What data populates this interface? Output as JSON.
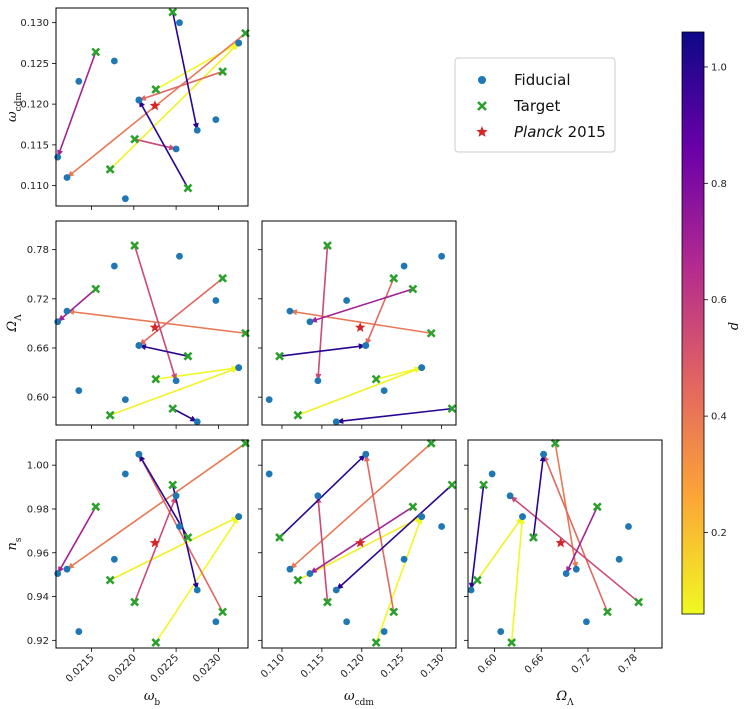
{
  "colorbar": {
    "label": "d",
    "ticks": [
      "0.2",
      "0.4",
      "0.6",
      "0.8",
      "1.0"
    ],
    "tick_values": [
      0.2,
      0.4,
      0.6,
      0.8,
      1.0
    ],
    "range": [
      0.06,
      1.06
    ],
    "colormap": "plasma_r",
    "stops": [
      "#f0f921",
      "#fca636",
      "#e16462",
      "#b12a90",
      "#6a00a8",
      "#0d0887"
    ]
  },
  "legend": {
    "items": [
      {
        "label": "Fiducial",
        "marker": "circle",
        "color": "#1f77b4"
      },
      {
        "label": "Target",
        "marker": "x",
        "color": "#2ca02c"
      },
      {
        "label": "Planck",
        "label_suffix": " 2015",
        "marker": "star",
        "color": "#d62728"
      }
    ]
  },
  "chart_data": [
    {
      "type": "scatter",
      "panel": "omega_b vs omega_cdm",
      "xlabel": "ω_b",
      "ylabel": "ω_cdm",
      "xlim": [
        0.02108,
        0.02335
      ],
      "ylim": [
        0.1075,
        0.1318
      ],
      "xticks": [
        {
          "v": 0.0215,
          "label": "0.0215"
        },
        {
          "v": 0.022,
          "label": "0.0220"
        },
        {
          "v": 0.0225,
          "label": "0.0225"
        },
        {
          "v": 0.023,
          "label": "0.0230"
        }
      ],
      "yticks": [
        {
          "v": 0.11,
          "label": "0.110"
        },
        {
          "v": 0.115,
          "label": "0.115"
        },
        {
          "v": 0.12,
          "label": "0.120"
        },
        {
          "v": 0.125,
          "label": "0.125"
        },
        {
          "v": 0.13,
          "label": "0.130"
        }
      ],
      "show_xticklabels": false,
      "show_yticklabels": true
    },
    {
      "type": "scatter",
      "panel": "omega_b vs Omega_Lambda",
      "xlabel": "ω_b",
      "ylabel": "Ω_Λ",
      "xlim": [
        0.02108,
        0.02335
      ],
      "ylim": [
        0.566,
        0.815
      ],
      "xticks": [
        {
          "v": 0.0215,
          "label": "0.0215"
        },
        {
          "v": 0.022,
          "label": "0.0220"
        },
        {
          "v": 0.0225,
          "label": "0.0225"
        },
        {
          "v": 0.023,
          "label": "0.0230"
        }
      ],
      "yticks": [
        {
          "v": 0.6,
          "label": "0.60"
        },
        {
          "v": 0.66,
          "label": "0.66"
        },
        {
          "v": 0.72,
          "label": "0.72"
        },
        {
          "v": 0.78,
          "label": "0.78"
        }
      ],
      "show_xticklabels": false,
      "show_yticklabels": true
    },
    {
      "type": "scatter",
      "panel": "omega_cdm vs Omega_Lambda",
      "xlabel": "ω_cdm",
      "ylabel": "Ω_Λ",
      "xlim": [
        0.1075,
        0.1318
      ],
      "ylim": [
        0.566,
        0.815
      ],
      "xticks": [
        {
          "v": 0.11,
          "label": "0.110"
        },
        {
          "v": 0.115,
          "label": "0.115"
        },
        {
          "v": 0.12,
          "label": "0.120"
        },
        {
          "v": 0.125,
          "label": "0.125"
        },
        {
          "v": 0.13,
          "label": "0.130"
        }
      ],
      "yticks": [
        {
          "v": 0.6,
          "label": "0.60"
        },
        {
          "v": 0.66,
          "label": "0.66"
        },
        {
          "v": 0.72,
          "label": "0.72"
        },
        {
          "v": 0.78,
          "label": "0.78"
        }
      ],
      "show_xticklabels": false,
      "show_yticklabels": false
    },
    {
      "type": "scatter",
      "panel": "omega_b vs n_s",
      "xlabel": "ω_b",
      "ylabel": "n_s",
      "xlim": [
        0.02108,
        0.02335
      ],
      "ylim": [
        0.9165,
        1.0115
      ],
      "xticks": [
        {
          "v": 0.0215,
          "label": "0.0215"
        },
        {
          "v": 0.022,
          "label": "0.0220"
        },
        {
          "v": 0.0225,
          "label": "0.0225"
        },
        {
          "v": 0.023,
          "label": "0.0230"
        }
      ],
      "yticks": [
        {
          "v": 0.92,
          "label": "0.92"
        },
        {
          "v": 0.94,
          "label": "0.94"
        },
        {
          "v": 0.96,
          "label": "0.96"
        },
        {
          "v": 0.98,
          "label": "0.98"
        },
        {
          "v": 1.0,
          "label": "1.00"
        }
      ],
      "show_xticklabels": true,
      "show_yticklabels": true
    },
    {
      "type": "scatter",
      "panel": "omega_cdm vs n_s",
      "xlabel": "ω_cdm",
      "ylabel": "n_s",
      "xlim": [
        0.1075,
        0.1318
      ],
      "ylim": [
        0.9165,
        1.0115
      ],
      "xticks": [
        {
          "v": 0.11,
          "label": "0.110"
        },
        {
          "v": 0.115,
          "label": "0.115"
        },
        {
          "v": 0.12,
          "label": "0.120"
        },
        {
          "v": 0.125,
          "label": "0.125"
        },
        {
          "v": 0.13,
          "label": "0.130"
        }
      ],
      "yticks": [
        {
          "v": 0.92,
          "label": "0.92"
        },
        {
          "v": 0.94,
          "label": "0.94"
        },
        {
          "v": 0.96,
          "label": "0.96"
        },
        {
          "v": 0.98,
          "label": "0.98"
        },
        {
          "v": 1.0,
          "label": "1.00"
        }
      ],
      "show_xticklabels": true,
      "show_yticklabels": false
    },
    {
      "type": "scatter",
      "panel": "Omega_Lambda vs n_s",
      "xlabel": "Ω_Λ",
      "ylabel": "n_s",
      "xlim": [
        0.566,
        0.815
      ],
      "ylim": [
        0.9165,
        1.0115
      ],
      "xticks": [
        {
          "v": 0.6,
          "label": "0.60"
        },
        {
          "v": 0.66,
          "label": "0.66"
        },
        {
          "v": 0.72,
          "label": "0.72"
        },
        {
          "v": 0.78,
          "label": "0.78"
        }
      ],
      "yticks": [
        {
          "v": 0.92,
          "label": "0.92"
        },
        {
          "v": 0.94,
          "label": "0.94"
        },
        {
          "v": 0.96,
          "label": "0.96"
        },
        {
          "v": 0.98,
          "label": "0.98"
        },
        {
          "v": 1.0,
          "label": "1.00"
        }
      ],
      "show_xticklabels": true,
      "show_yticklabels": false
    }
  ],
  "params": [
    "omega_b",
    "omega_cdm",
    "Omega_Lambda",
    "n_s"
  ],
  "paired_points": [
    {
      "d": 0.08,
      "fiducial": [
        0.02324,
        0.1275,
        0.636,
        0.9765
      ],
      "target": [
        0.02172,
        0.112,
        0.578,
        0.9475
      ]
    },
    {
      "d": 0.06,
      "fiducial": [
        0.02324,
        0.1275,
        0.636,
        0.9765
      ],
      "target": [
        0.02226,
        0.1218,
        0.622,
        0.919
      ]
    },
    {
      "d": 0.4,
      "fiducial": [
        0.02121,
        0.111,
        0.705,
        0.9525
      ],
      "target": [
        0.02332,
        0.1287,
        0.678,
        1.01
      ]
    },
    {
      "d": 0.45,
      "fiducial": [
        0.02206,
        0.1205,
        0.663,
        1.005
      ],
      "target": [
        0.02305,
        0.124,
        0.745,
        0.933
      ]
    },
    {
      "d": 0.55,
      "fiducial": [
        0.0225,
        0.1145,
        0.62,
        0.986
      ],
      "target": [
        0.02201,
        0.1157,
        0.785,
        0.9375
      ]
    },
    {
      "d": 0.7,
      "fiducial": [
        0.0211,
        0.1135,
        0.692,
        0.9505
      ],
      "target": [
        0.02155,
        0.1264,
        0.732,
        0.981
      ]
    },
    {
      "d": 1.0,
      "fiducial": [
        0.02275,
        0.1168,
        0.57,
        0.943
      ],
      "target": [
        0.02246,
        0.1313,
        0.586,
        0.991
      ]
    },
    {
      "d": 1.0,
      "fiducial": [
        0.02206,
        0.1205,
        0.663,
        1.005
      ],
      "target": [
        0.02264,
        0.1097,
        0.65,
        0.967
      ]
    }
  ],
  "fiducial_extra": [
    [
      0.02177,
      0.1253,
      0.76,
      0.957
    ],
    [
      0.02135,
      0.1228,
      0.608,
      0.924
    ],
    [
      0.02297,
      0.1181,
      0.718,
      0.9285
    ],
    [
      0.0219,
      0.1084,
      0.597,
      0.996
    ],
    [
      0.02254,
      0.13,
      0.772,
      0.972
    ]
  ],
  "planck": [
    0.02225,
    0.1198,
    0.685,
    0.9645
  ]
}
